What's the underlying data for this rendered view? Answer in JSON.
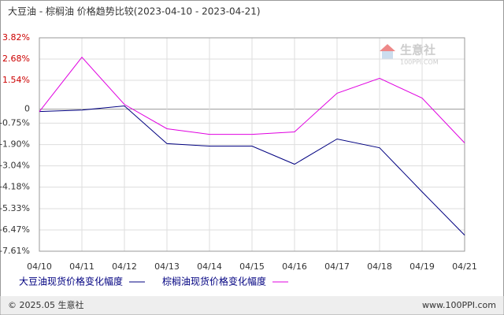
{
  "chart_data": {
    "type": "line",
    "title": "大豆油 - 棕榈油 价格趋势比较(2023-04-10 - 2023-04-21)",
    "categories": [
      "04/10",
      "04/11",
      "04/12",
      "04/13",
      "04/14",
      "04/15",
      "04/16",
      "04/17",
      "04/18",
      "04/19",
      "04/21"
    ],
    "series": [
      {
        "name": "大豆油现货价格变化幅度",
        "color": "#000080",
        "values": [
          -0.13,
          -0.05,
          0.17,
          -1.85,
          -1.98,
          -1.98,
          -2.95,
          -1.6,
          -2.07,
          -4.43,
          -6.75
        ]
      },
      {
        "name": "棕榈油现货价格变化幅度",
        "color": "#e000e0",
        "values": [
          -0.13,
          2.78,
          0.25,
          -1.05,
          -1.35,
          -1.35,
          -1.22,
          0.85,
          1.65,
          0.59,
          -1.81
        ]
      }
    ],
    "ylim": [
      -7.61,
      3.82
    ],
    "yticks": [
      {
        "value": 3.82,
        "label": "3.82%"
      },
      {
        "value": 2.68,
        "label": "2.68%"
      },
      {
        "value": 1.54,
        "label": "1.54%"
      },
      0,
      {
        "value": -0.75,
        "label": "-0.75%"
      },
      {
        "value": -1.9,
        "label": "-1.90%"
      },
      {
        "value": -3.04,
        "label": "-3.04%"
      },
      {
        "value": -4.18,
        "label": "-4.18%"
      },
      {
        "value": -5.33,
        "label": "-5.33%"
      },
      {
        "value": -6.47,
        "label": "-6.47%"
      },
      {
        "value": -7.61,
        "label": "-7.61%"
      }
    ],
    "grid": true,
    "watermark": [
      "生意社",
      "100PPI.COM"
    ],
    "footer": {
      "left": "© 2025.05 生意社",
      "right": "www.100PPI.com"
    }
  }
}
